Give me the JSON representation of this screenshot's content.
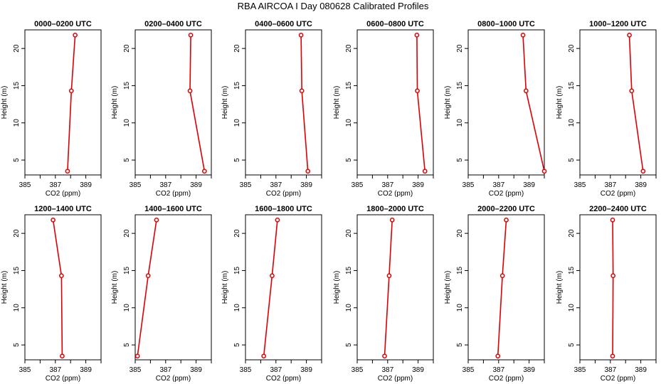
{
  "figure": {
    "title": "RBA AIRCOA I  Day 080628  Calibrated Profiles"
  },
  "colors": {
    "series": "#dd0000",
    "axes": "#000000",
    "background": "#ffffff"
  },
  "chart_data": [
    {
      "type": "line",
      "title": "0000–0200 UTC",
      "xlabel": "CO2 (ppm)",
      "ylabel": "Height (m)",
      "xlim": [
        385,
        390
      ],
      "ylim": [
        3,
        22.5
      ],
      "xticks": [
        385,
        386,
        387,
        388,
        389,
        390
      ],
      "xtick_labels": [
        "385",
        "387",
        "389"
      ],
      "yticks": [
        5,
        10,
        15,
        20
      ],
      "points": [
        {
          "x": 387.8,
          "y": 3.5
        },
        {
          "x": 388.05,
          "y": 14.3
        },
        {
          "x": 388.3,
          "y": 21.8
        }
      ]
    },
    {
      "type": "line",
      "title": "0200–0400 UTC",
      "xlabel": "CO2 (ppm)",
      "ylabel": "Height (m)",
      "xlim": [
        385,
        390
      ],
      "ylim": [
        3,
        22.5
      ],
      "xticks": [
        385,
        386,
        387,
        388,
        389,
        390
      ],
      "xtick_labels": [
        "385",
        "387",
        "389"
      ],
      "yticks": [
        5,
        10,
        15,
        20
      ],
      "points": [
        {
          "x": 389.55,
          "y": 3.5
        },
        {
          "x": 388.6,
          "y": 14.3
        },
        {
          "x": 388.65,
          "y": 21.8
        }
      ]
    },
    {
      "type": "line",
      "title": "0400–0600 UTC",
      "xlabel": "CO2 (ppm)",
      "ylabel": "Height (m)",
      "xlim": [
        385,
        390
      ],
      "ylim": [
        3,
        22.5
      ],
      "xticks": [
        385,
        386,
        387,
        388,
        389,
        390
      ],
      "xtick_labels": [
        "385",
        "387",
        "389"
      ],
      "yticks": [
        5,
        10,
        15,
        20
      ],
      "points": [
        {
          "x": 389.1,
          "y": 3.5
        },
        {
          "x": 388.7,
          "y": 14.3
        },
        {
          "x": 388.65,
          "y": 21.8
        }
      ]
    },
    {
      "type": "line",
      "title": "0600–0800 UTC",
      "xlabel": "CO2 (ppm)",
      "ylabel": "Height (m)",
      "xlim": [
        385,
        390
      ],
      "ylim": [
        3,
        22.5
      ],
      "xticks": [
        385,
        386,
        387,
        388,
        389,
        390
      ],
      "xtick_labels": [
        "385",
        "387",
        "389"
      ],
      "yticks": [
        5,
        10,
        15,
        20
      ],
      "points": [
        {
          "x": 389.45,
          "y": 3.5
        },
        {
          "x": 388.95,
          "y": 14.3
        },
        {
          "x": 388.92,
          "y": 21.8
        }
      ]
    },
    {
      "type": "line",
      "title": "0800–1000 UTC",
      "xlabel": "CO2 (ppm)",
      "ylabel": "Height (m)",
      "xlim": [
        385,
        390
      ],
      "ylim": [
        3,
        22.5
      ],
      "xticks": [
        385,
        386,
        387,
        388,
        389,
        390
      ],
      "xtick_labels": [
        "385",
        "387",
        "389"
      ],
      "yticks": [
        5,
        10,
        15,
        20
      ],
      "points": [
        {
          "x": 390.0,
          "y": 3.5
        },
        {
          "x": 388.8,
          "y": 14.3
        },
        {
          "x": 388.6,
          "y": 21.8
        }
      ]
    },
    {
      "type": "line",
      "title": "1000–1200 UTC",
      "xlabel": "CO2 (ppm)",
      "ylabel": "Height (m)",
      "xlim": [
        385,
        390
      ],
      "ylim": [
        3,
        22.5
      ],
      "xticks": [
        385,
        386,
        387,
        388,
        389,
        390
      ],
      "xtick_labels": [
        "385",
        "387",
        "389"
      ],
      "yticks": [
        5,
        10,
        15,
        20
      ],
      "points": [
        {
          "x": 389.15,
          "y": 3.5
        },
        {
          "x": 388.4,
          "y": 14.3
        },
        {
          "x": 388.25,
          "y": 21.8
        }
      ]
    },
    {
      "type": "line",
      "title": "1200–1400 UTC",
      "xlabel": "CO2 (ppm)",
      "ylabel": "Height (m)",
      "xlim": [
        385,
        390
      ],
      "ylim": [
        3,
        22.5
      ],
      "xticks": [
        385,
        386,
        387,
        388,
        389,
        390
      ],
      "xtick_labels": [
        "385",
        "387",
        "389"
      ],
      "yticks": [
        5,
        10,
        15,
        20
      ],
      "points": [
        {
          "x": 387.45,
          "y": 3.5
        },
        {
          "x": 387.4,
          "y": 14.3
        },
        {
          "x": 386.85,
          "y": 21.8
        }
      ]
    },
    {
      "type": "line",
      "title": "1400–1600 UTC",
      "xlabel": "CO2 (ppm)",
      "ylabel": "Height (m)",
      "xlim": [
        385,
        390
      ],
      "ylim": [
        3,
        22.5
      ],
      "xticks": [
        385,
        386,
        387,
        388,
        389,
        390
      ],
      "xtick_labels": [
        "385",
        "387",
        "389"
      ],
      "yticks": [
        5,
        10,
        15,
        20
      ],
      "points": [
        {
          "x": 385.15,
          "y": 3.5
        },
        {
          "x": 385.85,
          "y": 14.3
        },
        {
          "x": 386.4,
          "y": 21.8
        }
      ]
    },
    {
      "type": "line",
      "title": "1600–1800 UTC",
      "xlabel": "CO2 (ppm)",
      "ylabel": "Height (m)",
      "xlim": [
        385,
        390
      ],
      "ylim": [
        3,
        22.5
      ],
      "xticks": [
        385,
        386,
        387,
        388,
        389,
        390
      ],
      "xtick_labels": [
        "385",
        "387",
        "389"
      ],
      "yticks": [
        5,
        10,
        15,
        20
      ],
      "points": [
        {
          "x": 386.2,
          "y": 3.5
        },
        {
          "x": 386.75,
          "y": 14.3
        },
        {
          "x": 387.1,
          "y": 21.8
        }
      ]
    },
    {
      "type": "line",
      "title": "1800–2000 UTC",
      "xlabel": "CO2 (ppm)",
      "ylabel": "Height (m)",
      "xlim": [
        385,
        390
      ],
      "ylim": [
        3,
        22.5
      ],
      "xticks": [
        385,
        386,
        387,
        388,
        389,
        390
      ],
      "xtick_labels": [
        "385",
        "387",
        "389"
      ],
      "yticks": [
        5,
        10,
        15,
        20
      ],
      "points": [
        {
          "x": 386.8,
          "y": 3.5
        },
        {
          "x": 387.1,
          "y": 14.3
        },
        {
          "x": 387.3,
          "y": 21.8
        }
      ]
    },
    {
      "type": "line",
      "title": "2000–2200 UTC",
      "xlabel": "CO2 (ppm)",
      "ylabel": "Height (m)",
      "xlim": [
        385,
        390
      ],
      "ylim": [
        3,
        22.5
      ],
      "xticks": [
        385,
        386,
        387,
        388,
        389,
        390
      ],
      "xtick_labels": [
        "385",
        "387",
        "389"
      ],
      "yticks": [
        5,
        10,
        15,
        20
      ],
      "points": [
        {
          "x": 386.95,
          "y": 3.5
        },
        {
          "x": 387.25,
          "y": 14.3
        },
        {
          "x": 387.5,
          "y": 21.8
        }
      ]
    },
    {
      "type": "line",
      "title": "2200–2400 UTC",
      "xlabel": "CO2 (ppm)",
      "ylabel": "Height (m)",
      "xlim": [
        385,
        390
      ],
      "ylim": [
        3,
        22.5
      ],
      "xticks": [
        385,
        386,
        387,
        388,
        389,
        390
      ],
      "xtick_labels": [
        "385",
        "387",
        "389"
      ],
      "yticks": [
        5,
        10,
        15,
        20
      ],
      "points": [
        {
          "x": 387.15,
          "y": 3.5
        },
        {
          "x": 387.18,
          "y": 14.3
        },
        {
          "x": 387.15,
          "y": 21.8
        }
      ]
    }
  ]
}
